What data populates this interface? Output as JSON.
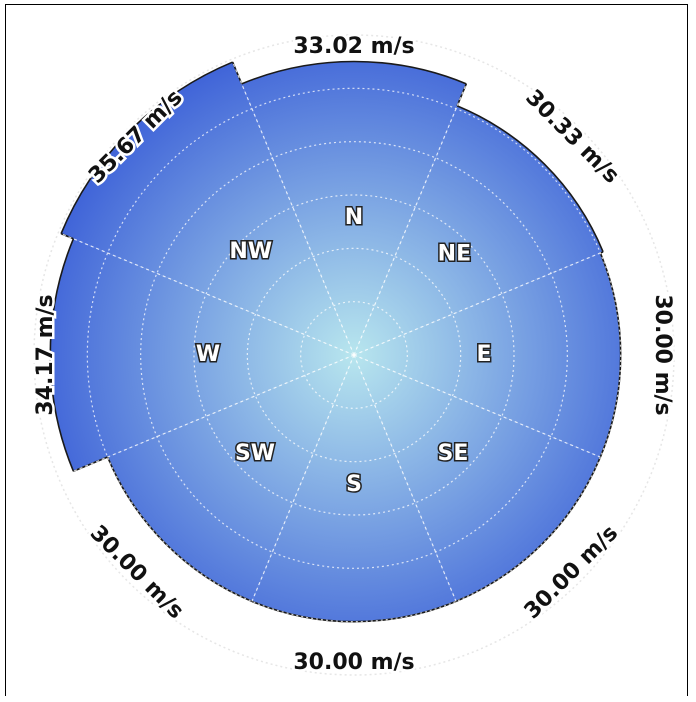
{
  "chart_data": {
    "type": "polar-bar",
    "title": "",
    "categories": [
      "N",
      "NE",
      "E",
      "SE",
      "S",
      "SW",
      "W",
      "NW"
    ],
    "values": [
      33.02,
      30.33,
      30.0,
      30.0,
      30.0,
      30.0,
      34.17,
      35.67
    ],
    "value_labels": [
      "33.02 m/s",
      "30.33 m/s",
      "30.00 m/s",
      "30.00 m/s",
      "30.00 m/s",
      "30.00 m/s",
      "34.17 m/s",
      "35.67 m/s"
    ],
    "unit": "m/s",
    "rlim": [
      0,
      36
    ],
    "grid": true,
    "colors": {
      "center": "#b8e6ee",
      "edge": "#3f63d8",
      "outline": "#1a1a1a",
      "grid": "#ffffff"
    }
  }
}
